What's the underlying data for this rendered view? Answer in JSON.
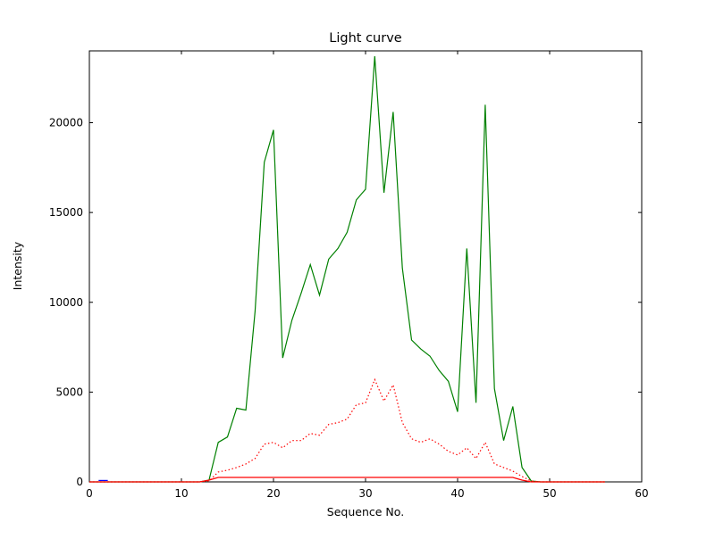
{
  "chart_data": {
    "type": "line",
    "title": "Light curve",
    "xlabel": "Sequence No.",
    "ylabel": "Intensity",
    "xlim": [
      0,
      60
    ],
    "ylim": [
      0,
      24000
    ],
    "xticks": [
      0,
      10,
      20,
      30,
      40,
      50,
      60
    ],
    "yticks": [
      0,
      5000,
      10000,
      15000,
      20000
    ],
    "grid": false,
    "legend": "none",
    "series": [
      {
        "name": "green-solid",
        "color": "#008000",
        "style": "solid",
        "x": [
          0,
          1,
          2,
          3,
          4,
          5,
          6,
          7,
          8,
          9,
          10,
          11,
          12,
          13,
          14,
          15,
          16,
          17,
          18,
          19,
          20,
          21,
          22,
          23,
          24,
          25,
          26,
          27,
          28,
          29,
          30,
          31,
          32,
          33,
          34,
          35,
          36,
          37,
          38,
          39,
          40,
          41,
          42,
          43,
          44,
          45,
          46,
          47,
          48,
          49,
          50,
          51,
          52,
          53,
          54,
          55,
          56
        ],
        "values": [
          0,
          0,
          0,
          0,
          0,
          0,
          0,
          0,
          0,
          0,
          0,
          0,
          0,
          100,
          2200,
          2500,
          4100,
          4000,
          9500,
          17800,
          19600,
          6900,
          9000,
          10500,
          12100,
          10400,
          12400,
          13000,
          13900,
          15700,
          16300,
          23700,
          16100,
          20600,
          11900,
          7900,
          7400,
          7000,
          6200,
          5600,
          3900,
          13000,
          4400,
          21000,
          5200,
          2300,
          4200,
          800,
          50,
          0,
          0,
          0,
          0,
          0,
          0,
          0,
          0
        ]
      },
      {
        "name": "red-dotted",
        "color": "#ff0000",
        "style": "dotted",
        "x": [
          0,
          1,
          2,
          3,
          4,
          5,
          6,
          7,
          8,
          9,
          10,
          11,
          12,
          13,
          14,
          15,
          16,
          17,
          18,
          19,
          20,
          21,
          22,
          23,
          24,
          25,
          26,
          27,
          28,
          29,
          30,
          31,
          32,
          33,
          34,
          35,
          36,
          37,
          38,
          39,
          40,
          41,
          42,
          43,
          44,
          45,
          46,
          47,
          48,
          49,
          50,
          51,
          52,
          53,
          54,
          55,
          56
        ],
        "values": [
          0,
          0,
          0,
          0,
          0,
          0,
          0,
          0,
          0,
          0,
          0,
          0,
          0,
          50,
          550,
          650,
          800,
          1000,
          1300,
          2100,
          2200,
          1900,
          2300,
          2300,
          2700,
          2600,
          3200,
          3300,
          3500,
          4300,
          4400,
          5700,
          4500,
          5400,
          3300,
          2400,
          2200,
          2400,
          2100,
          1700,
          1500,
          1900,
          1300,
          2200,
          1000,
          800,
          600,
          300,
          50,
          0,
          0,
          0,
          0,
          0,
          0,
          0,
          0
        ]
      },
      {
        "name": "red-solid",
        "color": "#ff0000",
        "style": "solid",
        "x": [
          0,
          1,
          2,
          3,
          4,
          5,
          6,
          7,
          8,
          9,
          10,
          11,
          12,
          13,
          14,
          15,
          16,
          17,
          18,
          19,
          20,
          21,
          22,
          23,
          24,
          25,
          26,
          27,
          28,
          29,
          30,
          31,
          32,
          33,
          34,
          35,
          36,
          37,
          38,
          39,
          40,
          41,
          42,
          43,
          44,
          45,
          46,
          47,
          48,
          49,
          50,
          51,
          52,
          53,
          54,
          55,
          56
        ],
        "values": [
          0,
          0,
          0,
          0,
          0,
          0,
          0,
          0,
          0,
          0,
          0,
          0,
          0,
          100,
          250,
          250,
          250,
          250,
          250,
          250,
          250,
          250,
          250,
          250,
          250,
          250,
          250,
          250,
          250,
          250,
          250,
          250,
          250,
          250,
          250,
          250,
          250,
          250,
          250,
          250,
          250,
          250,
          250,
          250,
          250,
          250,
          250,
          100,
          0,
          0,
          0,
          0,
          0,
          0,
          0,
          0,
          0
        ]
      },
      {
        "name": "blue-solid",
        "color": "#0000ff",
        "style": "solid",
        "x": [
          1,
          2
        ],
        "values": [
          80,
          80
        ]
      }
    ]
  }
}
